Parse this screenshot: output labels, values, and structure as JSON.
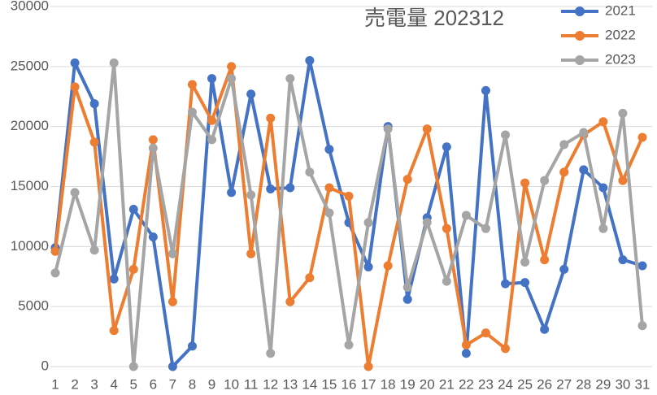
{
  "chart_data": {
    "type": "line",
    "title": "売電量 202312",
    "categories": [
      "1",
      "2",
      "3",
      "4",
      "5",
      "6",
      "7",
      "8",
      "9",
      "10",
      "11",
      "12",
      "13",
      "14",
      "15",
      "16",
      "17",
      "18",
      "19",
      "20",
      "21",
      "22",
      "23",
      "24",
      "25",
      "26",
      "27",
      "28",
      "29",
      "30",
      "31"
    ],
    "series": [
      {
        "name": "2021",
        "color": "#4472c4",
        "values": [
          9900,
          25300,
          21900,
          7300,
          13100,
          10800,
          0,
          1700,
          24000,
          14500,
          22700,
          14800,
          14900,
          25500,
          18100,
          12000,
          8300,
          20000,
          5600,
          12400,
          18300,
          1100,
          23000,
          6900,
          7000,
          3100,
          8100,
          16400,
          14900,
          8900,
          8400
        ]
      },
      {
        "name": "2022",
        "color": "#ed7d31",
        "values": [
          9600,
          23300,
          18700,
          3000,
          8100,
          18900,
          5400,
          23500,
          20500,
          25000,
          9400,
          20700,
          5400,
          7400,
          14900,
          14200,
          0,
          8400,
          15600,
          19800,
          11500,
          1800,
          2800,
          1500,
          15300,
          8900,
          16200,
          19300,
          20400,
          15500,
          19100
        ]
      },
      {
        "name": "2023",
        "color": "#a5a5a5",
        "values": [
          7800,
          14500,
          9700,
          25300,
          0,
          18200,
          9400,
          21200,
          18900,
          24000,
          14300,
          1100,
          24000,
          16200,
          12800,
          1800,
          12000,
          19800,
          6600,
          12000,
          7100,
          12600,
          11500,
          19300,
          8700,
          15500,
          18500,
          19500,
          11500,
          21100,
          3400
        ]
      }
    ],
    "ylim": [
      0,
      30000
    ],
    "yticks": [
      0,
      5000,
      10000,
      15000,
      20000,
      25000,
      30000
    ],
    "grid": true,
    "legend": "top-right"
  }
}
